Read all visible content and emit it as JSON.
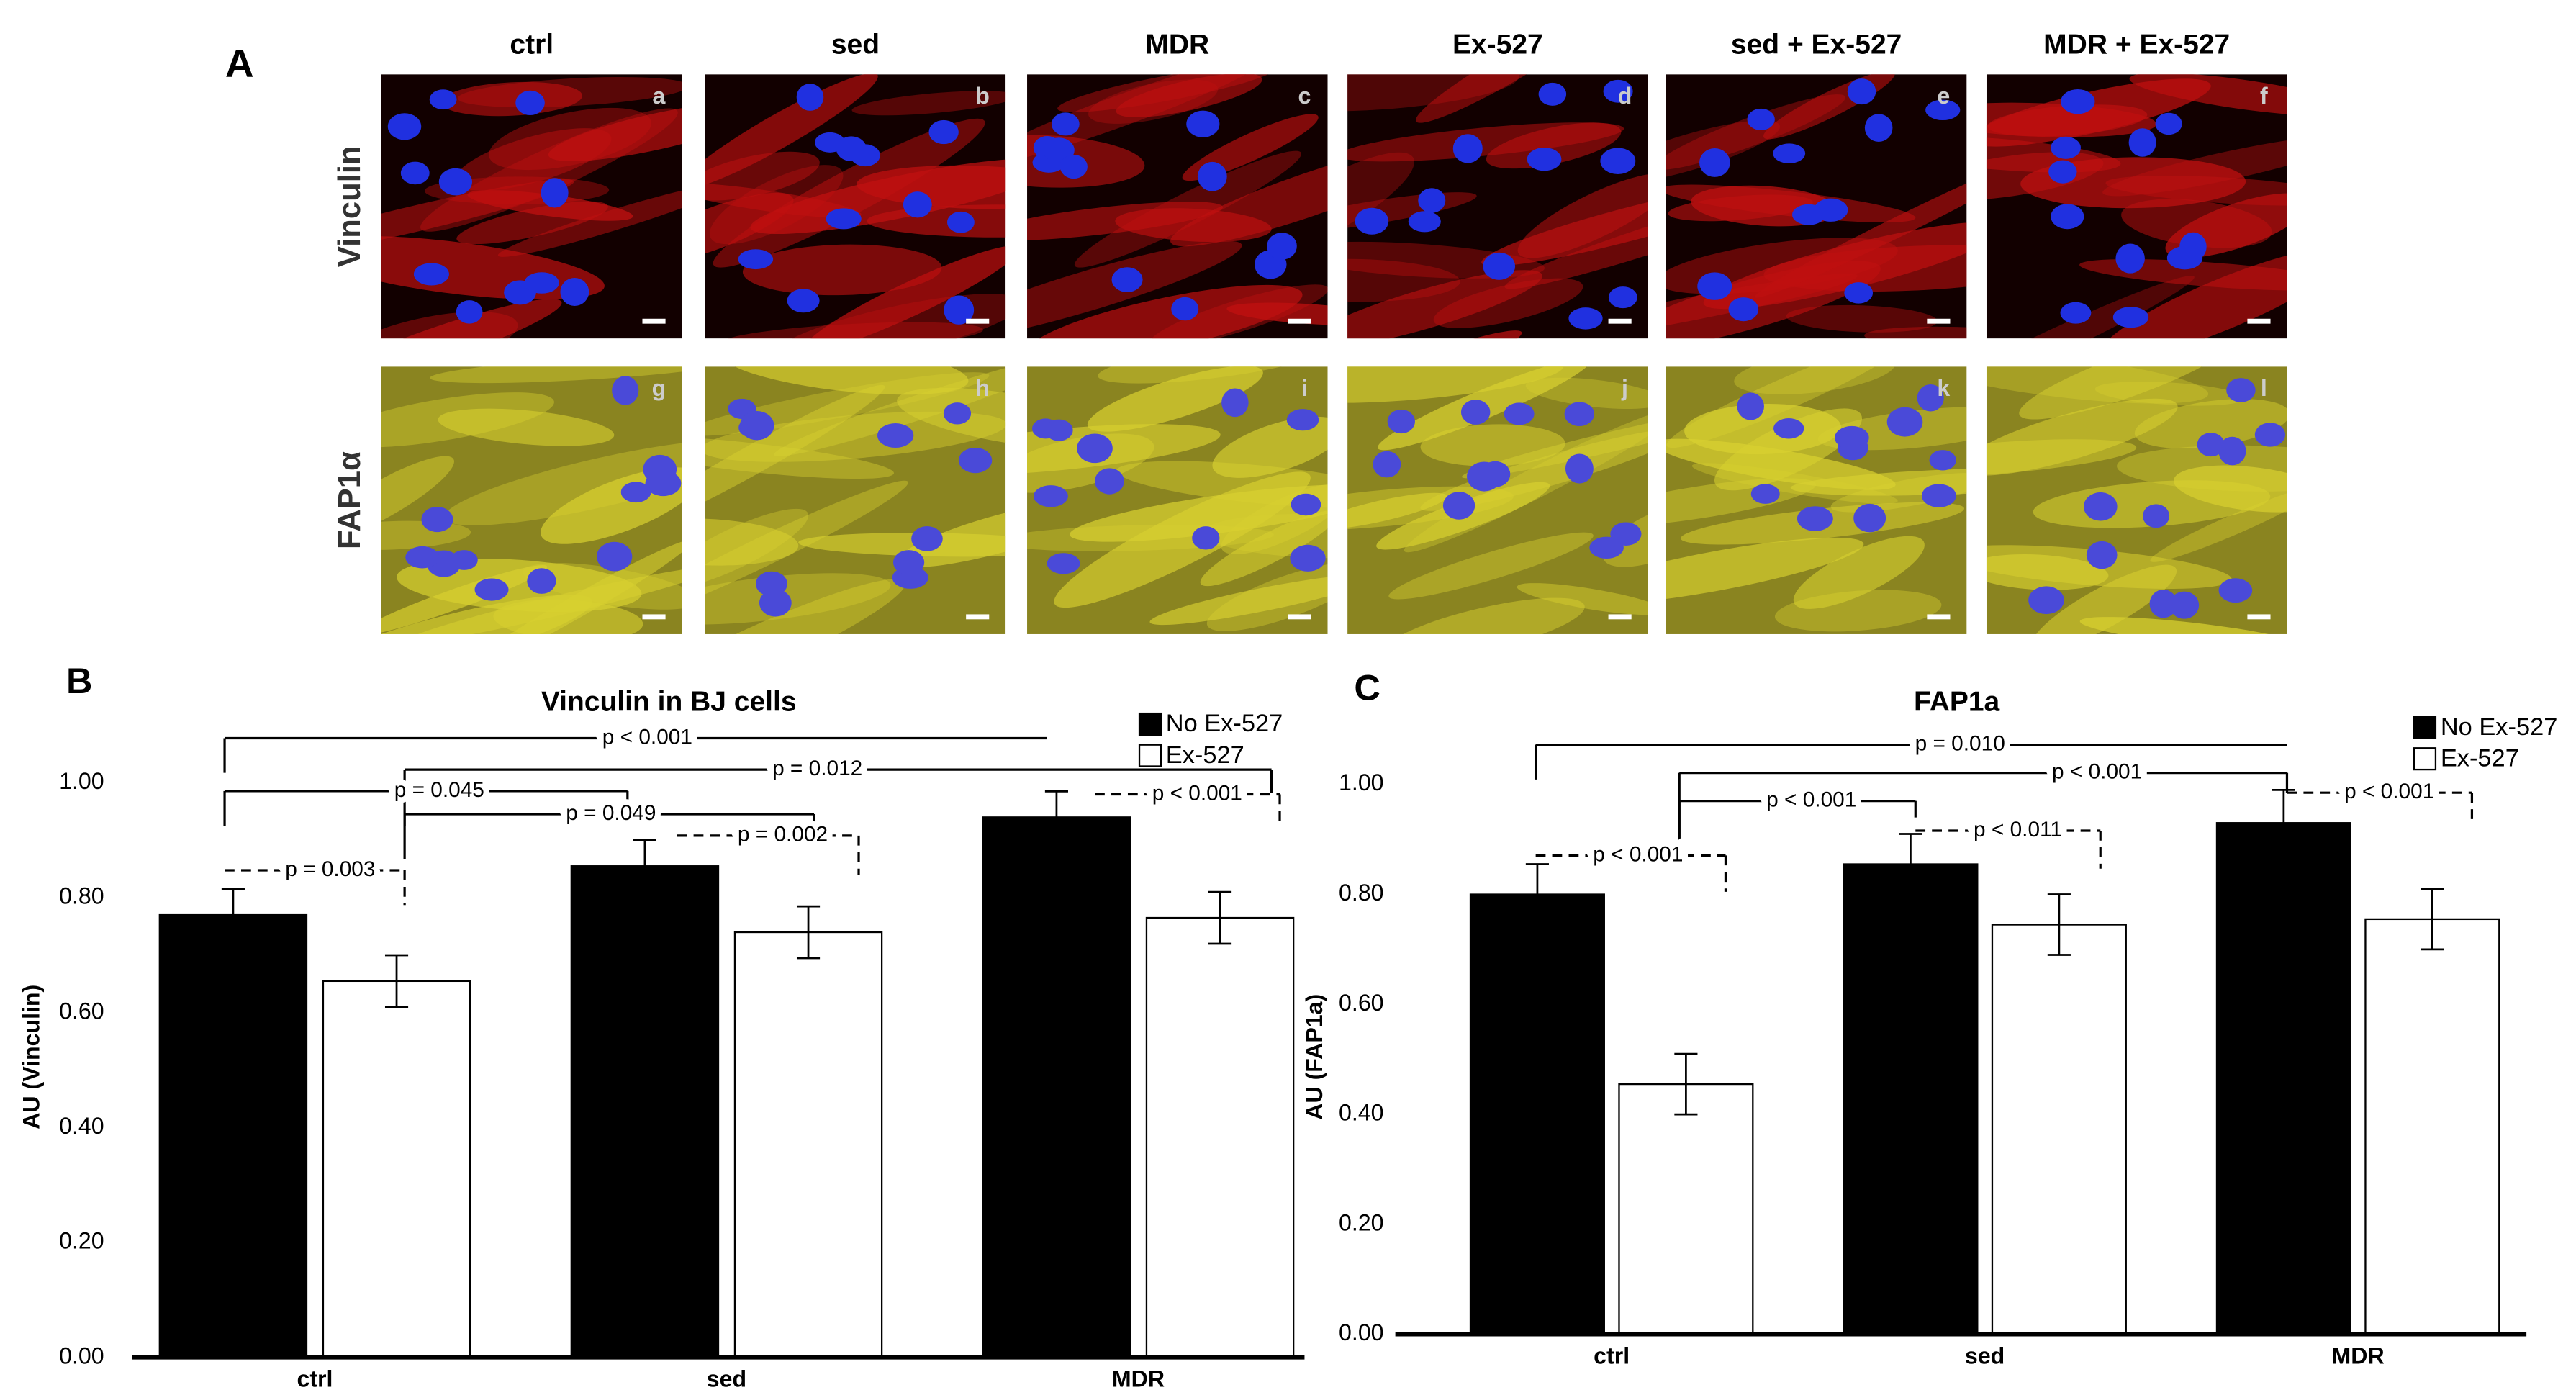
{
  "panel_a": {
    "panel": "A",
    "columns": [
      "ctrl",
      "sed",
      "MDR",
      "Ex-527",
      "sed + Ex-527",
      "MDR + Ex-527"
    ],
    "rows": [
      "Vinculin",
      "FAP1α"
    ],
    "image_letters": [
      [
        "a",
        "b",
        "c",
        "d",
        "e",
        "f"
      ],
      [
        "g",
        "h",
        "i",
        "j",
        "k",
        "l"
      ]
    ]
  },
  "chart_data": [
    {
      "type": "bar",
      "panel": "B",
      "title": "Vinculin in BJ cells",
      "ylabel": "AU (Vinculin)",
      "categories": [
        "ctrl",
        "sed",
        "MDR"
      ],
      "series": [
        {
          "name": "No Ex-527",
          "color": "#000000",
          "values": [
            0.77,
            0.855,
            0.94
          ],
          "errors": [
            0.045,
            0.045,
            0.045
          ]
        },
        {
          "name": "Ex-527",
          "color": "#ffffff",
          "values": [
            0.655,
            0.74,
            0.765
          ],
          "errors": [
            0.045,
            0.045,
            0.045
          ]
        }
      ],
      "ylim": [
        0,
        1
      ],
      "yticks": [
        {
          "value": 0,
          "label": "0.00"
        },
        {
          "value": 0.2,
          "label": "0.20"
        },
        {
          "value": 0.4,
          "label": "0.40"
        },
        {
          "value": 0.6,
          "label": "0.60"
        },
        {
          "value": 0.8,
          "label": "0.80"
        },
        {
          "value": 1,
          "label": "1.00"
        }
      ],
      "grid": false,
      "legend": "upper right",
      "annotations": [
        {
          "text": "p < 0.001"
        },
        {
          "text": "p = 0.012"
        },
        {
          "text": "p = 0.045"
        },
        {
          "text": "p = 0.049"
        },
        {
          "text": "p = 0.002"
        },
        {
          "text": "p = 0.003"
        },
        {
          "text": "p < 0.001"
        }
      ]
    },
    {
      "type": "bar",
      "panel": "C",
      "title": "FAP1a",
      "ylabel": "AU (FAP1a)",
      "categories": [
        "ctrl",
        "sed",
        "MDR"
      ],
      "series": [
        {
          "name": "No Ex-527",
          "color": "#000000",
          "values": [
            0.8,
            0.855,
            0.93
          ],
          "errors": [
            0.055,
            0.055,
            0.06
          ]
        },
        {
          "name": "Ex-527",
          "color": "#ffffff",
          "values": [
            0.455,
            0.745,
            0.755
          ],
          "errors": [
            0.055,
            0.055,
            0.055
          ]
        }
      ],
      "ylim": [
        0,
        1
      ],
      "yticks": [
        {
          "value": 0,
          "label": "0.00"
        },
        {
          "value": 0.2,
          "label": "0.20"
        },
        {
          "value": 0.4,
          "label": "0.40"
        },
        {
          "value": 0.6,
          "label": "0.60"
        },
        {
          "value": 0.8,
          "label": "0.80"
        },
        {
          "value": 1,
          "label": "1.00"
        }
      ],
      "grid": false,
      "legend": "upper right",
      "annotations": [
        {
          "text": "p = 0.010"
        },
        {
          "text": "p < 0.001"
        },
        {
          "text": "p < 0.001"
        },
        {
          "text": "p < 0.011"
        },
        {
          "text": "p < 0.001"
        },
        {
          "text": "p < 0.001"
        }
      ]
    }
  ]
}
